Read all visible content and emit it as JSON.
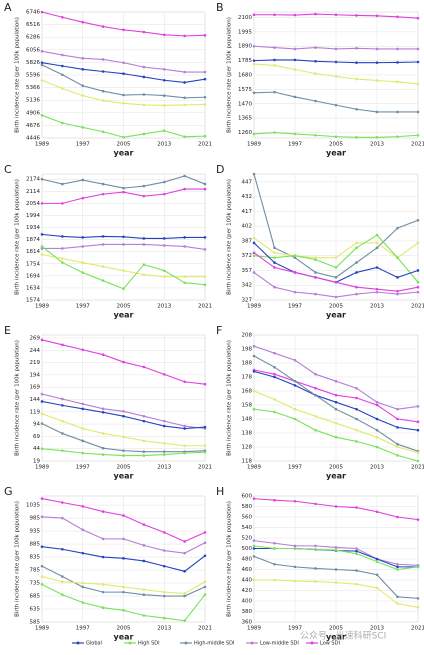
{
  "chart_data": [
    {
      "type": "line",
      "title": "A",
      "y_label": "Birth incidence rate (per 100k population)",
      "x_label": "year",
      "x": [
        1989,
        1993,
        1997,
        2001,
        2005,
        2009,
        2013,
        2017,
        2021
      ],
      "xlim": [
        1989,
        2021
      ],
      "xticks": [
        1989,
        1997,
        2005,
        2013,
        2021
      ],
      "ylim": [
        4446,
        6746
      ],
      "yticks": [
        4446,
        4676,
        4906,
        5136,
        5366,
        5596,
        5826,
        6056,
        6286,
        6516,
        6746
      ],
      "grid": true,
      "series": [
        {
          "color": "#e03fe0",
          "values": [
            6746,
            6650,
            6560,
            6480,
            6420,
            6380,
            6330,
            6310,
            6320
          ]
        },
        {
          "color": "#b57fd6",
          "values": [
            6030,
            5960,
            5900,
            5880,
            5820,
            5740,
            5700,
            5650,
            5650
          ]
        },
        {
          "color": "#2344c0",
          "values": [
            5820,
            5760,
            5700,
            5660,
            5620,
            5560,
            5500,
            5460,
            5520
          ]
        },
        {
          "color": "#6f8ea5",
          "values": [
            5780,
            5600,
            5400,
            5300,
            5230,
            5240,
            5220,
            5180,
            5190
          ]
        },
        {
          "color": "#e2e86e",
          "values": [
            5500,
            5350,
            5220,
            5130,
            5080,
            5050,
            5040,
            5050,
            5060
          ]
        },
        {
          "color": "#77e25a",
          "values": [
            4860,
            4720,
            4640,
            4560,
            4460,
            4520,
            4580,
            4470,
            4480
          ]
        }
      ]
    },
    {
      "type": "line",
      "title": "B",
      "y_label": "Birth incidence rate (per 100k population)",
      "x_label": "year",
      "x": [
        1989,
        1993,
        1997,
        2001,
        2005,
        2009,
        2013,
        2017,
        2021
      ],
      "xlim": [
        1989,
        2021
      ],
      "xticks": [
        1989,
        1997,
        2005,
        2013,
        2021
      ],
      "ylim": [
        1220,
        2140
      ],
      "yticks": [
        1260,
        1365,
        1470,
        1575,
        1680,
        1785,
        1890,
        1995,
        2100
      ],
      "grid": true,
      "series": [
        {
          "color": "#e03fe0",
          "values": [
            2120,
            2120,
            2118,
            2125,
            2120,
            2115,
            2112,
            2105,
            2095
          ]
        },
        {
          "color": "#b57fd6",
          "values": [
            1890,
            1880,
            1870,
            1880,
            1870,
            1875,
            1870,
            1870,
            1870
          ]
        },
        {
          "color": "#2344c0",
          "values": [
            1785,
            1790,
            1790,
            1780,
            1775,
            1770,
            1770,
            1772,
            1775
          ]
        },
        {
          "color": "#e2e86e",
          "values": [
            1760,
            1750,
            1720,
            1690,
            1670,
            1650,
            1640,
            1630,
            1615
          ]
        },
        {
          "color": "#6f8ea5",
          "values": [
            1550,
            1555,
            1520,
            1490,
            1460,
            1430,
            1410,
            1410,
            1410
          ]
        },
        {
          "color": "#77e25a",
          "values": [
            1250,
            1260,
            1250,
            1240,
            1230,
            1225,
            1225,
            1230,
            1240
          ]
        }
      ]
    },
    {
      "type": "line",
      "title": "C",
      "y_label": "Birth incidence rate (per 100k population)",
      "x_label": "year",
      "x": [
        1989,
        1993,
        1997,
        2001,
        2005,
        2009,
        2013,
        2017,
        2021
      ],
      "xlim": [
        1989,
        2021
      ],
      "xticks": [
        1989,
        1997,
        2005,
        2013,
        2021
      ],
      "ylim": [
        1574,
        2200
      ],
      "yticks": [
        1574,
        1634,
        1694,
        1754,
        1814,
        1874,
        1934,
        1994,
        2054,
        2114,
        2174
      ],
      "grid": true,
      "series": [
        {
          "color": "#6f8ea5",
          "values": [
            2174,
            2150,
            2170,
            2150,
            2130,
            2140,
            2160,
            2190,
            2150
          ]
        },
        {
          "color": "#e03fe0",
          "values": [
            2054,
            2054,
            2080,
            2100,
            2110,
            2090,
            2100,
            2125,
            2125
          ]
        },
        {
          "color": "#2344c0",
          "values": [
            1900,
            1890,
            1885,
            1890,
            1888,
            1880,
            1880,
            1885,
            1885
          ]
        },
        {
          "color": "#b57fd6",
          "values": [
            1830,
            1830,
            1840,
            1850,
            1850,
            1850,
            1845,
            1840,
            1825
          ]
        },
        {
          "color": "#e2e86e",
          "values": [
            1800,
            1780,
            1760,
            1740,
            1720,
            1700,
            1690,
            1690,
            1690
          ]
        },
        {
          "color": "#77e25a",
          "values": [
            1840,
            1760,
            1710,
            1670,
            1630,
            1750,
            1720,
            1660,
            1650
          ]
        }
      ]
    },
    {
      "type": "line",
      "title": "D",
      "y_label": "Birth incidence rate (per 100k population)",
      "x_label": "year",
      "x": [
        1989,
        1993,
        1997,
        2001,
        2005,
        2009,
        2013,
        2017,
        2021
      ],
      "xlim": [
        1989,
        2021
      ],
      "xticks": [
        1989,
        1997,
        2005,
        2013,
        2021
      ],
      "ylim": [
        327,
        455
      ],
      "yticks": [
        327,
        342,
        357,
        372,
        387,
        402,
        417,
        432,
        447
      ],
      "grid": true,
      "series": [
        {
          "color": "#6f8ea5",
          "values": [
            455,
            380,
            370,
            355,
            350,
            365,
            380,
            400,
            408
          ]
        },
        {
          "color": "#e2e86e",
          "values": [
            390,
            375,
            372,
            370,
            370,
            385,
            385,
            370,
            385
          ]
        },
        {
          "color": "#77e25a",
          "values": [
            372,
            370,
            372,
            368,
            360,
            380,
            393,
            370,
            345
          ]
        },
        {
          "color": "#2344c0",
          "values": [
            385,
            365,
            355,
            350,
            345,
            355,
            360,
            350,
            357
          ]
        },
        {
          "color": "#b57fd6",
          "values": [
            355,
            340,
            335,
            333,
            330,
            333,
            335,
            333,
            335
          ]
        },
        {
          "color": "#e03fe0",
          "values": [
            375,
            360,
            355,
            350,
            345,
            340,
            338,
            336,
            340
          ]
        }
      ]
    },
    {
      "type": "line",
      "title": "E",
      "y_label": "Birth incidence rate (per 100k population)",
      "x_label": "year",
      "x": [
        1989,
        1993,
        1997,
        2001,
        2005,
        2009,
        2013,
        2017,
        2021
      ],
      "xlim": [
        1989,
        2021
      ],
      "xticks": [
        1989,
        1997,
        2005,
        2013,
        2021
      ],
      "ylim": [
        19,
        275
      ],
      "yticks": [
        19,
        44,
        69,
        94,
        119,
        144,
        169,
        194,
        219,
        244,
        269
      ],
      "grid": true,
      "series": [
        {
          "color": "#e03fe0",
          "values": [
            265,
            255,
            245,
            235,
            220,
            210,
            195,
            180,
            175
          ]
        },
        {
          "color": "#b57fd6",
          "values": [
            155,
            145,
            135,
            125,
            120,
            110,
            100,
            90,
            85
          ]
        },
        {
          "color": "#2344c0",
          "values": [
            140,
            132,
            125,
            118,
            110,
            100,
            90,
            85,
            88
          ]
        },
        {
          "color": "#e2e86e",
          "values": [
            115,
            100,
            85,
            75,
            68,
            60,
            55,
            50,
            50
          ]
        },
        {
          "color": "#6f8ea5",
          "values": [
            95,
            75,
            60,
            45,
            40,
            38,
            38,
            38,
            40
          ]
        },
        {
          "color": "#77e25a",
          "values": [
            44,
            40,
            35,
            32,
            30,
            30,
            32,
            35,
            37
          ]
        }
      ]
    },
    {
      "type": "line",
      "title": "F",
      "y_label": "Birth incidence rate (per 100k population)",
      "x_label": "year",
      "x": [
        1989,
        1993,
        1997,
        2001,
        2005,
        2009,
        2013,
        2017,
        2021
      ],
      "xlim": [
        1989,
        2021
      ],
      "xticks": [
        1989,
        1997,
        2005,
        2013,
        2021
      ],
      "ylim": [
        118,
        208
      ],
      "yticks": [
        118,
        128,
        138,
        148,
        158,
        168,
        178,
        188,
        198,
        208
      ],
      "grid": true,
      "series": [
        {
          "color": "#b57fd6",
          "values": [
            200,
            195,
            190,
            180,
            175,
            170,
            160,
            155,
            157
          ]
        },
        {
          "color": "#e03fe0",
          "values": [
            183,
            180,
            175,
            170,
            165,
            163,
            158,
            148,
            146
          ]
        },
        {
          "color": "#2344c0",
          "values": [
            182,
            178,
            172,
            165,
            160,
            155,
            148,
            142,
            140
          ]
        },
        {
          "color": "#6f8ea5",
          "values": [
            193,
            185,
            175,
            165,
            155,
            148,
            140,
            130,
            125
          ]
        },
        {
          "color": "#e2e86e",
          "values": [
            168,
            162,
            155,
            150,
            145,
            140,
            135,
            128,
            124
          ]
        },
        {
          "color": "#77e25a",
          "values": [
            155,
            153,
            148,
            140,
            135,
            132,
            128,
            122,
            118
          ]
        }
      ]
    },
    {
      "type": "line",
      "title": "G",
      "y_label": "Birth incidence rate (per 100k population)",
      "x_label": "year",
      "x": [
        1989,
        1993,
        1997,
        2001,
        2005,
        2009,
        2013,
        2017,
        2021
      ],
      "xlim": [
        1989,
        2021
      ],
      "xticks": [
        1989,
        1997,
        2005,
        2013,
        2021
      ],
      "ylim": [
        585,
        1070
      ],
      "yticks": [
        585,
        635,
        685,
        735,
        785,
        835,
        885,
        935,
        985,
        1035
      ],
      "grid": true,
      "series": [
        {
          "color": "#e03fe0",
          "values": [
            1060,
            1045,
            1030,
            1010,
            995,
            960,
            930,
            895,
            930
          ]
        },
        {
          "color": "#b57fd6",
          "values": [
            990,
            985,
            940,
            905,
            905,
            880,
            860,
            850,
            890
          ]
        },
        {
          "color": "#2344c0",
          "values": [
            875,
            865,
            850,
            835,
            830,
            820,
            800,
            780,
            840
          ]
        },
        {
          "color": "#6f8ea5",
          "values": [
            800,
            760,
            720,
            700,
            700,
            690,
            685,
            685,
            720
          ]
        },
        {
          "color": "#e2e86e",
          "values": [
            760,
            740,
            735,
            730,
            720,
            710,
            700,
            695,
            740
          ]
        },
        {
          "color": "#77e25a",
          "values": [
            730,
            690,
            660,
            640,
            630,
            610,
            600,
            590,
            690
          ]
        }
      ]
    },
    {
      "type": "line",
      "title": "H",
      "y_label": "Birth incidence rate (per 100k population)",
      "x_label": "year",
      "x": [
        1989,
        1993,
        1997,
        2001,
        2005,
        2009,
        2013,
        2017,
        2021
      ],
      "xlim": [
        1989,
        2021
      ],
      "xticks": [
        1989,
        1997,
        2005,
        2013,
        2021
      ],
      "ylim": [
        360,
        600
      ],
      "yticks": [
        360,
        380,
        400,
        420,
        440,
        460,
        480,
        500,
        520,
        540,
        560,
        580,
        600
      ],
      "grid": true,
      "series": [
        {
          "color": "#e03fe0",
          "values": [
            595,
            592,
            590,
            585,
            580,
            578,
            570,
            560,
            555
          ]
        },
        {
          "color": "#b57fd6",
          "values": [
            515,
            510,
            505,
            505,
            502,
            500,
            480,
            470,
            468
          ]
        },
        {
          "color": "#2344c0",
          "values": [
            500,
            500,
            500,
            498,
            496,
            495,
            480,
            465,
            465
          ]
        },
        {
          "color": "#77e25a",
          "values": [
            505,
            500,
            500,
            498,
            497,
            490,
            475,
            460,
            465
          ]
        },
        {
          "color": "#6f8ea5",
          "values": [
            485,
            470,
            465,
            462,
            460,
            458,
            450,
            408,
            405
          ]
        },
        {
          "color": "#e2e86e",
          "values": [
            440,
            440,
            438,
            437,
            435,
            432,
            425,
            395,
            388
          ]
        }
      ]
    }
  ],
  "legend": [
    {
      "name": "Global",
      "color": "#2344c0"
    },
    {
      "name": "High SDI",
      "color": "#77e25a"
    },
    {
      "name": "High-middle SDI",
      "color": "#6f8ea5"
    },
    {
      "name": "Low-middle SDI",
      "color": "#b57fd6"
    },
    {
      "name": "Low SDI",
      "color": "#e03fe0"
    }
  ],
  "watermark": "公众号 · 光速科研SCI"
}
